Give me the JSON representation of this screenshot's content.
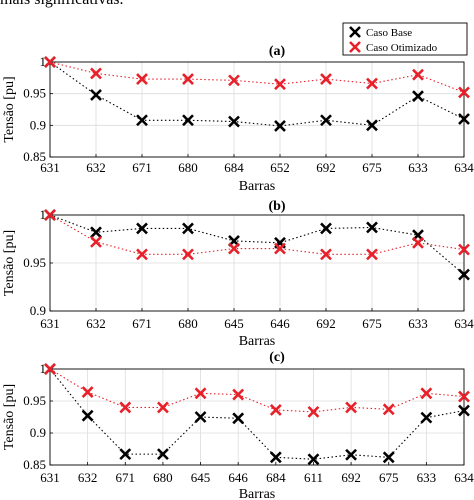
{
  "header_text": "mais significativas.",
  "colors": {
    "base": "#000000",
    "optimized": "#e8202a"
  },
  "legend": {
    "position": "top-right",
    "base_label": "Caso Base",
    "optimized_label": "Caso Otimizado"
  },
  "chart_data": [
    {
      "type": "line",
      "title": "(a)",
      "xlabel": "Barras",
      "ylabel": "Tensão [pu]",
      "ylim": [
        0.85,
        1.0
      ],
      "yticks": [
        "0.85",
        "0.9",
        "0.95",
        "1"
      ],
      "grid": true,
      "categories": [
        "631",
        "632",
        "671",
        "680",
        "684",
        "652",
        "692",
        "675",
        "633",
        "634"
      ],
      "series": [
        {
          "name": "Caso Base",
          "values": [
            1.0,
            0.948,
            0.908,
            0.908,
            0.906,
            0.899,
            0.908,
            0.9,
            0.946,
            0.91
          ]
        },
        {
          "name": "Caso Otimizado",
          "values": [
            1.0,
            0.982,
            0.973,
            0.973,
            0.971,
            0.965,
            0.973,
            0.966,
            0.98,
            0.952
          ]
        }
      ]
    },
    {
      "type": "line",
      "title": "(b)",
      "xlabel": "Barras",
      "ylabel": "Tensão [pu]",
      "ylim": [
        0.9,
        1.0
      ],
      "yticks": [
        "0.9",
        "0.95",
        "1"
      ],
      "grid": true,
      "categories": [
        "631",
        "632",
        "671",
        "680",
        "645",
        "646",
        "692",
        "675",
        "633",
        "634"
      ],
      "series": [
        {
          "name": "Caso Base",
          "values": [
            1.0,
            0.982,
            0.986,
            0.986,
            0.973,
            0.971,
            0.986,
            0.987,
            0.979,
            0.938
          ]
        },
        {
          "name": "Caso Otimizado",
          "values": [
            1.0,
            0.972,
            0.959,
            0.959,
            0.965,
            0.965,
            0.959,
            0.959,
            0.971,
            0.964
          ]
        }
      ]
    },
    {
      "type": "line",
      "title": "(c)",
      "xlabel": "Barras",
      "ylabel": "Tensão [pu]",
      "ylim": [
        0.85,
        1.0
      ],
      "yticks": [
        "0.85",
        "0.9",
        "0.95",
        "1"
      ],
      "grid": true,
      "categories": [
        "631",
        "632",
        "671",
        "680",
        "645",
        "646",
        "684",
        "611",
        "692",
        "675",
        "633",
        "634"
      ],
      "series": [
        {
          "name": "Caso Base",
          "values": [
            1.0,
            0.927,
            0.867,
            0.867,
            0.925,
            0.923,
            0.862,
            0.859,
            0.866,
            0.862,
            0.924,
            0.935
          ]
        },
        {
          "name": "Caso Otimizado",
          "values": [
            1.0,
            0.964,
            0.94,
            0.94,
            0.962,
            0.96,
            0.936,
            0.933,
            0.94,
            0.937,
            0.962,
            0.957
          ]
        }
      ]
    }
  ]
}
